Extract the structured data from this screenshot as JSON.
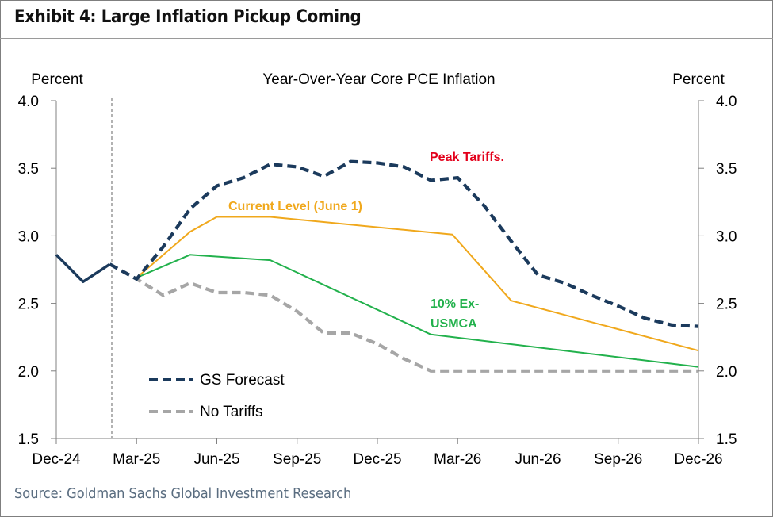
{
  "header": {
    "title": "Exhibit 4: Large Inflation Pickup Coming"
  },
  "footer": {
    "source": "Source: Goldman Sachs Global Investment Research"
  },
  "chart_data": {
    "type": "line",
    "title": "Year-Over-Year  Core PCE Inflation",
    "ylabel_left": "Percent",
    "ylabel_right": "Percent",
    "ylim": [
      1.5,
      4.0
    ],
    "yticks": [
      "1.5",
      "2.0",
      "2.5",
      "3.0",
      "3.5",
      "4.0"
    ],
    "xlim": [
      0,
      24
    ],
    "xticks": [
      {
        "x": 0,
        "label": "Dec-24"
      },
      {
        "x": 3,
        "label": "Mar-25"
      },
      {
        "x": 6,
        "label": "Jun-25"
      },
      {
        "x": 9,
        "label": "Sep-25"
      },
      {
        "x": 12,
        "label": "Dec-25"
      },
      {
        "x": 15,
        "label": "Mar-26"
      },
      {
        "x": 18,
        "label": "Jun-26"
      },
      {
        "x": 21,
        "label": "Sep-26"
      },
      {
        "x": 24,
        "label": "Dec-26"
      }
    ],
    "forecast_start_x": 2,
    "series": [
      {
        "name": "Actual",
        "color": "#1b3a5c",
        "style": "solid",
        "points": [
          [
            0,
            2.86
          ],
          [
            1,
            2.66
          ],
          [
            2,
            2.79
          ]
        ]
      },
      {
        "name": "GS Forecast",
        "color": "#1b3a5c",
        "style": "dashed",
        "points": [
          [
            2,
            2.79
          ],
          [
            3,
            2.68
          ],
          [
            4,
            2.92
          ],
          [
            5,
            3.2
          ],
          [
            6,
            3.37
          ],
          [
            7,
            3.43
          ],
          [
            8,
            3.53
          ],
          [
            9,
            3.51
          ],
          [
            10,
            3.44
          ],
          [
            11,
            3.55
          ],
          [
            12,
            3.54
          ],
          [
            13,
            3.51
          ],
          [
            14,
            3.41
          ],
          [
            15,
            3.43
          ],
          [
            16,
            3.22
          ],
          [
            17,
            2.96
          ],
          [
            18,
            2.71
          ],
          [
            19,
            2.65
          ],
          [
            20,
            2.56
          ],
          [
            21,
            2.48
          ],
          [
            22,
            2.39
          ],
          [
            23,
            2.34
          ],
          [
            24,
            2.33
          ]
        ]
      },
      {
        "name": "No Tariffs",
        "color": "#a6a6a6",
        "style": "dashed",
        "points": [
          [
            2,
            2.79
          ],
          [
            3,
            2.68
          ],
          [
            4,
            2.56
          ],
          [
            5,
            2.65
          ],
          [
            6,
            2.58
          ],
          [
            7,
            2.58
          ],
          [
            8,
            2.56
          ],
          [
            9,
            2.44
          ],
          [
            10,
            2.28
          ],
          [
            11,
            2.28
          ],
          [
            12,
            2.2
          ],
          [
            13,
            2.09
          ],
          [
            14,
            2.0
          ],
          [
            15,
            2.0
          ],
          [
            18,
            2.0
          ],
          [
            21,
            2.0
          ],
          [
            24,
            2.0
          ]
        ]
      },
      {
        "name": "Current Level (June 1)",
        "color": "#f0a81c",
        "style": "solid",
        "points": [
          [
            3,
            2.69
          ],
          [
            5,
            3.03
          ],
          [
            6,
            3.14
          ],
          [
            8,
            3.14
          ],
          [
            14.8,
            3.01
          ],
          [
            17,
            2.52
          ],
          [
            24,
            2.15
          ]
        ]
      },
      {
        "name": "10% Ex-USMCA",
        "color": "#22b14c",
        "style": "solid",
        "points": [
          [
            3,
            2.69
          ],
          [
            5,
            2.86
          ],
          [
            8,
            2.82
          ],
          [
            14,
            2.27
          ],
          [
            24,
            2.03
          ]
        ]
      }
    ],
    "legend": [
      {
        "label": "GS Forecast",
        "color": "#1b3a5c"
      },
      {
        "label": "No Tariffs",
        "color": "#a6a6a6"
      }
    ],
    "annotations": [
      {
        "text": "Peak Tariffs.",
        "color": "#e3001b"
      },
      {
        "text": "Current Level (June 1)",
        "color": "#f0a81c"
      },
      {
        "text": "10% Ex-",
        "color": "#22b14c"
      },
      {
        "text": "USMCA",
        "color": "#22b14c"
      }
    ]
  }
}
